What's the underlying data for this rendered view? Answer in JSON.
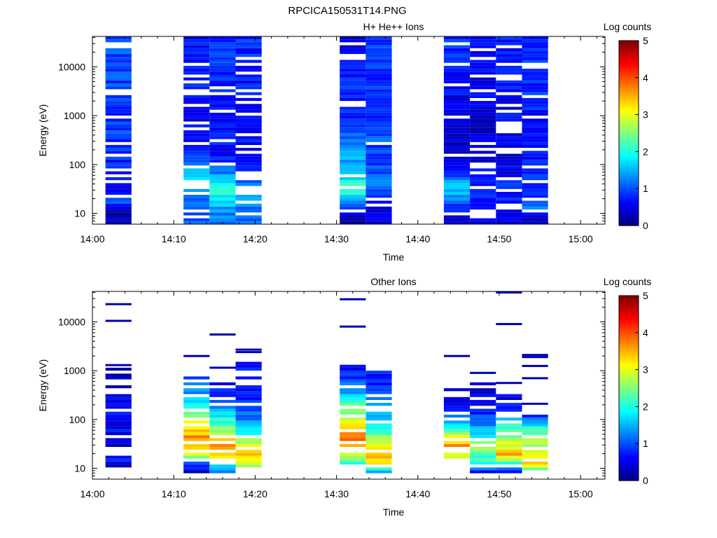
{
  "figure_title": "RPCICA150531T14.PNG",
  "chart_data": [
    {
      "type": "heatmap",
      "title": "H+ He++ Ions",
      "xlabel": "Time",
      "ylabel": "Energy (eV)",
      "colorbar_label": "Log counts",
      "colorbar_ticks": [
        "0",
        "1",
        "2",
        "3",
        "4",
        "5"
      ],
      "x_ticks": [
        "14:00",
        "14:10",
        "14:20",
        "14:30",
        "14:40",
        "14:50",
        "15:00"
      ],
      "y_ticks": [
        "10",
        "100",
        "1000",
        "10000"
      ],
      "y_scale": "log",
      "xlim_minutes": [
        0,
        63
      ],
      "ylim_eV": [
        6,
        42000
      ],
      "zlim": [
        0,
        5
      ],
      "time_bins": [
        {
          "start_min": 1.6,
          "end_min": 4.8,
          "profile": [
            [
              10,
              0.2
            ],
            [
              18,
              1.0
            ],
            [
              30,
              0.6
            ],
            [
              80,
              0.7
            ],
            [
              300,
              0.9
            ],
            [
              2000,
              0.9
            ],
            [
              40000,
              1.0
            ]
          ],
          "gap_every": 9
        },
        {
          "start_min": 11.2,
          "end_min": 14.4,
          "profile": [
            [
              10,
              1.0
            ],
            [
              20,
              1.2
            ],
            [
              40,
              2.0
            ],
            [
              70,
              1.5
            ],
            [
              120,
              0.8
            ],
            [
              500,
              0.5
            ],
            [
              5000,
              0.8
            ],
            [
              40000,
              0.7
            ]
          ],
          "gap_every": 5
        },
        {
          "start_min": 14.4,
          "end_min": 17.6,
          "profile": [
            [
              8,
              1.2
            ],
            [
              15,
              1.6
            ],
            [
              30,
              2.0
            ],
            [
              60,
              1.4
            ],
            [
              120,
              0.7
            ],
            [
              1000,
              0.6
            ],
            [
              40000,
              0.9
            ]
          ],
          "gap_every": 7
        },
        {
          "start_min": 17.6,
          "end_min": 20.8,
          "profile": [
            [
              8,
              1.2
            ],
            [
              15,
              1.3
            ],
            [
              25,
              1.6
            ],
            [
              50,
              1.0
            ],
            [
              200,
              0.6
            ],
            [
              2000,
              0.7
            ],
            [
              40000,
              0.8
            ]
          ],
          "gap_every": 4
        },
        {
          "start_min": 30.4,
          "end_min": 33.6,
          "profile": [
            [
              8,
              0.3
            ],
            [
              15,
              0.9
            ],
            [
              25,
              2.0
            ],
            [
              40,
              2.2
            ],
            [
              70,
              1.3
            ],
            [
              200,
              1.5
            ],
            [
              500,
              0.9
            ],
            [
              3000,
              0.8
            ],
            [
              40000,
              0.4
            ]
          ],
          "gap_every": 8
        },
        {
          "start_min": 33.6,
          "end_min": 36.8,
          "profile": [
            [
              8,
              0.4
            ],
            [
              20,
              0.8
            ],
            [
              40,
              1.1
            ],
            [
              100,
              0.9
            ],
            [
              400,
              1.0
            ],
            [
              3000,
              0.8
            ],
            [
              40000,
              0.9
            ]
          ],
          "gap_every": 9
        },
        {
          "start_min": 43.2,
          "end_min": 46.4,
          "profile": [
            [
              8,
              0.4
            ],
            [
              12,
              0.8
            ],
            [
              20,
              1.2
            ],
            [
              35,
              1.8
            ],
            [
              60,
              0.9
            ],
            [
              200,
              0.3
            ],
            [
              2000,
              0.6
            ],
            [
              40000,
              0.9
            ]
          ],
          "gap_every": 6
        },
        {
          "start_min": 46.4,
          "end_min": 49.6,
          "profile": [
            [
              8,
              0.6
            ],
            [
              15,
              0.7
            ],
            [
              25,
              0.9
            ],
            [
              60,
              0.6
            ],
            [
              300,
              0.4
            ],
            [
              3000,
              0.5
            ],
            [
              40000,
              0.6
            ]
          ],
          "gap_every": 4
        },
        {
          "start_min": 49.6,
          "end_min": 52.8,
          "profile": [
            [
              8,
              0.4
            ],
            [
              15,
              0.7
            ],
            [
              30,
              0.8
            ],
            [
              80,
              0.5
            ],
            [
              400,
              0.5
            ],
            [
              5000,
              0.7
            ],
            [
              40000,
              0.8
            ]
          ],
          "gap_every": 5
        },
        {
          "start_min": 52.8,
          "end_min": 56.0,
          "profile": [
            [
              8,
              0.3
            ],
            [
              12,
              1.3
            ],
            [
              20,
              0.6
            ],
            [
              50,
              0.9
            ],
            [
              200,
              0.6
            ],
            [
              2000,
              0.8
            ],
            [
              40000,
              0.8
            ]
          ],
          "gap_every": 5
        }
      ]
    },
    {
      "type": "heatmap",
      "title": "Other Ions",
      "xlabel": "Time",
      "ylabel": "Energy (eV)",
      "colorbar_label": "Log counts",
      "colorbar_ticks": [
        "0",
        "1",
        "2",
        "3",
        "4",
        "5"
      ],
      "x_ticks": [
        "14:00",
        "14:10",
        "14:20",
        "14:30",
        "14:40",
        "14:50",
        "15:00"
      ],
      "y_ticks": [
        "10",
        "100",
        "1000",
        "10000"
      ],
      "y_scale": "log",
      "xlim_minutes": [
        0,
        63
      ],
      "ylim_eV": [
        6,
        42000
      ],
      "zlim": [
        0,
        5
      ],
      "time_bins": [
        {
          "start_min": 1.6,
          "end_min": 4.8,
          "lines_eV": [
            23000,
            10500,
            1300
          ],
          "band": [
            10,
            1300
          ],
          "profile": [
            [
              10,
              0.2
            ],
            [
              15,
              0.7
            ],
            [
              20,
              1.0
            ],
            [
              30,
              0.4
            ],
            [
              60,
              0.6
            ],
            [
              200,
              0.6
            ],
            [
              1300,
              0.3
            ]
          ],
          "gap_every": 3
        },
        {
          "start_min": 11.2,
          "end_min": 14.4,
          "lines_eV": [
            2000
          ],
          "band": [
            8,
            800
          ],
          "profile": [
            [
              8,
              0.2
            ],
            [
              12,
              1.0
            ],
            [
              18,
              2.8
            ],
            [
              28,
              3.5
            ],
            [
              45,
              3.6
            ],
            [
              80,
              3.0
            ],
            [
              150,
              2.3
            ],
            [
              300,
              1.4
            ],
            [
              800,
              0.8
            ]
          ],
          "gap_every": 4
        },
        {
          "start_min": 14.4,
          "end_min": 17.6,
          "lines_eV": [
            5500,
            1150
          ],
          "band": [
            8,
            600
          ],
          "profile": [
            [
              8,
              1.0
            ],
            [
              12,
              2.0
            ],
            [
              18,
              3.2
            ],
            [
              28,
              3.7
            ],
            [
              45,
              3.0
            ],
            [
              80,
              2.3
            ],
            [
              150,
              1.6
            ],
            [
              300,
              0.9
            ],
            [
              600,
              0.5
            ]
          ],
          "gap_every": 4
        },
        {
          "start_min": 17.6,
          "end_min": 20.8,
          "lines_eV": [
            2700,
            2400
          ],
          "band": [
            8,
            1500
          ],
          "profile": [
            [
              8,
              1.0
            ],
            [
              12,
              3.1
            ],
            [
              18,
              3.4
            ],
            [
              28,
              3.0
            ],
            [
              45,
              2.3
            ],
            [
              80,
              1.5
            ],
            [
              200,
              0.8
            ],
            [
              1500,
              0.6
            ]
          ],
          "gap_every": 4
        },
        {
          "start_min": 30.4,
          "end_min": 33.6,
          "lines_eV": [
            29000,
            8000
          ],
          "band": [
            12,
            1300
          ],
          "profile": [
            [
              12,
              2.0
            ],
            [
              18,
              2.7
            ],
            [
              28,
              3.3
            ],
            [
              40,
              3.9
            ],
            [
              60,
              3.4
            ],
            [
              100,
              2.9
            ],
            [
              200,
              2.3
            ],
            [
              400,
              1.3
            ],
            [
              1300,
              0.5
            ]
          ],
          "gap_every": 5
        },
        {
          "start_min": 33.6,
          "end_min": 36.8,
          "lines_eV": [],
          "band": [
            8,
            1300
          ],
          "profile": [
            [
              8,
              1.0
            ],
            [
              12,
              3.2
            ],
            [
              20,
              3.4
            ],
            [
              35,
              2.9
            ],
            [
              60,
              2.2
            ],
            [
              120,
              1.5
            ],
            [
              300,
              1.0
            ],
            [
              1300,
              0.6
            ]
          ],
          "gap_every": 4
        },
        {
          "start_min": 43.2,
          "end_min": 46.4,
          "lines_eV": [
            2000
          ],
          "band": [
            12,
            500
          ],
          "profile": [
            [
              12,
              2.0
            ],
            [
              18,
              3.1
            ],
            [
              28,
              3.6
            ],
            [
              45,
              3.2
            ],
            [
              70,
              2.0
            ],
            [
              150,
              0.8
            ],
            [
              500,
              0.4
            ]
          ],
          "gap_every": 3
        },
        {
          "start_min": 46.4,
          "end_min": 49.6,
          "lines_eV": [
            900
          ],
          "band": [
            8,
            600
          ],
          "profile": [
            [
              8,
              0.2
            ],
            [
              12,
              2.0
            ],
            [
              18,
              2.2
            ],
            [
              28,
              2.5
            ],
            [
              45,
              2.0
            ],
            [
              80,
              1.2
            ],
            [
              200,
              0.6
            ],
            [
              600,
              0.3
            ]
          ],
          "gap_every": 3
        },
        {
          "start_min": 49.6,
          "end_min": 52.8,
          "lines_eV": [
            40000,
            9000,
            560
          ],
          "band": [
            8,
            350
          ],
          "profile": [
            [
              8,
              0.2
            ],
            [
              12,
              2.0
            ],
            [
              20,
              3.6
            ],
            [
              30,
              3.0
            ],
            [
              50,
              2.4
            ],
            [
              90,
              1.9
            ],
            [
              180,
              0.7
            ],
            [
              350,
              0.4
            ]
          ],
          "gap_every": 4
        },
        {
          "start_min": 52.8,
          "end_min": 56.0,
          "lines_eV": [
            2100,
            1900,
            1250,
            700,
            210
          ],
          "band": [
            8,
            120
          ],
          "profile": [
            [
              8,
              1.2
            ],
            [
              12,
              3.2
            ],
            [
              20,
              3.2
            ],
            [
              30,
              2.8
            ],
            [
              50,
              2.5
            ],
            [
              80,
              1.8
            ],
            [
              120,
              0.6
            ]
          ],
          "gap_every": 5
        }
      ]
    }
  ]
}
